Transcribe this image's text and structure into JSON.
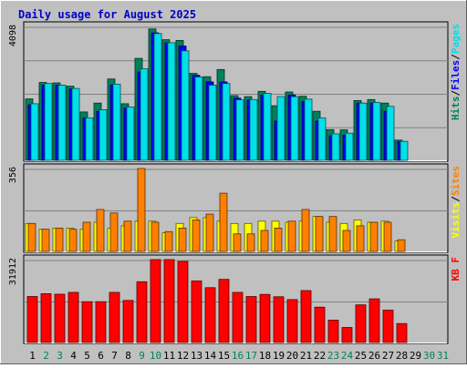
{
  "title": "Daily usage for August 2025",
  "colors": {
    "page_bg": "#c0c0c0",
    "plot_bg": "#c0c0c0",
    "title": "#0000cc",
    "grid": "#808080",
    "hits": "#00805c",
    "files": "#0000ff",
    "pages": "#00e0e8",
    "visits": "#ffff00",
    "sites": "#ff8000",
    "kbf": "#ff0000",
    "weekday_label": "#000000",
    "weekend_label": "#00805c"
  },
  "chart_data": [
    {
      "type": "bar",
      "title": "Daily usage for August 2025",
      "ymax_label": "4098",
      "legend": [
        {
          "text": "Hits",
          "color": "#00805c"
        },
        {
          "text": "Files",
          "color": "#0000ff"
        },
        {
          "text": "Pages",
          "color": "#00e0e8"
        }
      ],
      "categories": [
        "1",
        "2",
        "3",
        "4",
        "5",
        "6",
        "7",
        "8",
        "9",
        "10",
        "11",
        "12",
        "13",
        "14",
        "15",
        "16",
        "17",
        "18",
        "19",
        "20",
        "21",
        "22",
        "23",
        "24",
        "25",
        "26",
        "27",
        "28",
        "29",
        "30",
        "31"
      ],
      "series": [
        {
          "name": "Hits",
          "values": [
            1880,
            2380,
            2370,
            2270,
            1480,
            1750,
            2490,
            1730,
            3120,
            4020,
            3690,
            3670,
            2660,
            2560,
            2780,
            1980,
            1950,
            2110,
            1670,
            2090,
            1960,
            1500,
            940,
            930,
            1830,
            1860,
            1750,
            620,
            0,
            0,
            0
          ]
        },
        {
          "name": "Files",
          "values": [
            1700,
            2300,
            2300,
            2180,
            1300,
            1500,
            2310,
            1600,
            2700,
            3900,
            3600,
            3500,
            2600,
            2400,
            2400,
            1900,
            1850,
            2000,
            1200,
            2000,
            1800,
            1200,
            750,
            770,
            1750,
            1750,
            1500,
            570,
            0,
            0,
            0
          ]
        },
        {
          "name": "Pages",
          "values": [
            1730,
            2350,
            2300,
            2200,
            1300,
            1550,
            2330,
            1630,
            2800,
            3880,
            3600,
            3350,
            2550,
            2300,
            2350,
            1850,
            1860,
            2050,
            1950,
            1950,
            1870,
            1300,
            810,
            830,
            1750,
            1770,
            1650,
            580,
            0,
            0,
            0
          ]
        }
      ]
    },
    {
      "type": "bar",
      "ymax_label": "356",
      "legend": [
        {
          "text": "Visits",
          "color": "#ffff00"
        },
        {
          "text": "Sites",
          "color": "#ff8000"
        }
      ],
      "categories": [
        "1",
        "2",
        "3",
        "4",
        "5",
        "6",
        "7",
        "8",
        "9",
        "10",
        "11",
        "12",
        "13",
        "14",
        "15",
        "16",
        "17",
        "18",
        "19",
        "20",
        "21",
        "22",
        "23",
        "24",
        "25",
        "26",
        "27",
        "28",
        "29",
        "30",
        "31"
      ],
      "series": [
        {
          "name": "Visits",
          "values": [
            120,
            95,
            100,
            100,
            95,
            125,
            100,
            110,
            130,
            130,
            80,
            120,
            145,
            145,
            130,
            120,
            120,
            130,
            130,
            125,
            130,
            150,
            125,
            120,
            135,
            125,
            130,
            45,
            0,
            0,
            0
          ]
        },
        {
          "name": "Sites",
          "values": [
            120,
            95,
            100,
            95,
            125,
            180,
            165,
            130,
            356,
            125,
            85,
            100,
            135,
            160,
            250,
            75,
            75,
            90,
            100,
            130,
            180,
            150,
            150,
            90,
            110,
            125,
            125,
            50,
            0,
            0,
            0
          ]
        }
      ]
    },
    {
      "type": "bar",
      "ymax_label": "31912",
      "legend": [
        {
          "text": "KB F",
          "color": "#ff0000"
        }
      ],
      "categories": [
        "1",
        "2",
        "3",
        "4",
        "5",
        "6",
        "7",
        "8",
        "9",
        "10",
        "11",
        "12",
        "13",
        "14",
        "15",
        "16",
        "17",
        "18",
        "19",
        "20",
        "21",
        "22",
        "23",
        "24",
        "25",
        "26",
        "27",
        "28",
        "29",
        "30",
        "31"
      ],
      "series": [
        {
          "name": "KB F",
          "values": [
            17700,
            18800,
            18600,
            19300,
            15700,
            15700,
            19300,
            16200,
            23400,
            31912,
            31912,
            31200,
            23700,
            21100,
            24300,
            19300,
            17700,
            18500,
            17600,
            16500,
            20000,
            13600,
            8600,
            5800,
            14500,
            16800,
            12500,
            7300,
            0,
            0,
            0
          ]
        }
      ]
    }
  ],
  "weekend_days": [
    "2",
    "3",
    "9",
    "10",
    "16",
    "17",
    "23",
    "24",
    "30",
    "31"
  ]
}
